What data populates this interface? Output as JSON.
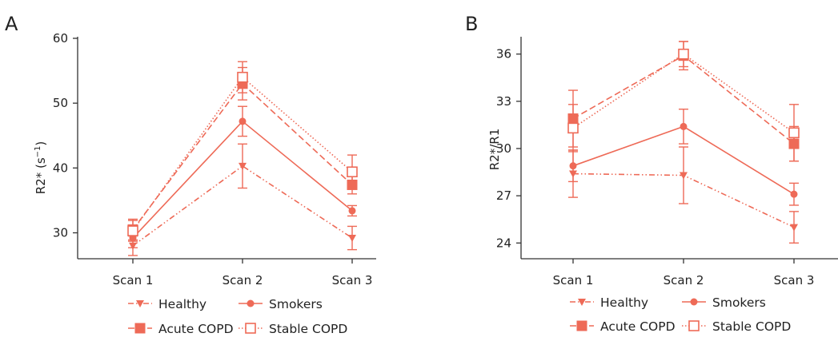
{
  "colors": {
    "series": "#ee6a57",
    "axis": "#333333",
    "text": "#222222"
  },
  "legend": {
    "placement": "bottom",
    "items": [
      {
        "label": "Healthy",
        "style": "dashdotdot",
        "marker": "triangle-down"
      },
      {
        "label": "Smokers",
        "style": "solid",
        "marker": "circle"
      },
      {
        "label": "Acute COPD",
        "style": "dashed",
        "marker": "square-filled"
      },
      {
        "label": "Stable COPD",
        "style": "dotted",
        "marker": "square-open"
      }
    ]
  },
  "chart_data": [
    {
      "panel": "A",
      "type": "line",
      "categories": [
        "Scan 1",
        "Scan 2",
        "Scan 3"
      ],
      "ylabel": "R2* (s",
      "ylabel_sup": "−1",
      "ylabel_tail": ")",
      "ylim": [
        26,
        60
      ],
      "yticks": [
        30,
        40,
        50,
        60
      ],
      "grid": false,
      "series": [
        {
          "name": "Healthy",
          "values": [
            28.0,
            40.3,
            29.2
          ],
          "err": [
            1.5,
            3.4,
            1.8
          ]
        },
        {
          "name": "Smokers",
          "values": [
            29.2,
            47.2,
            33.4
          ],
          "err": [
            1.5,
            2.3,
            0.8
          ]
        },
        {
          "name": "Acute COPD",
          "values": [
            30.5,
            53.0,
            37.4
          ],
          "err": [
            1.6,
            2.5,
            1.4
          ]
        },
        {
          "name": "Stable COPD",
          "values": [
            30.3,
            54.0,
            39.4
          ],
          "err": [
            1.6,
            2.4,
            2.6
          ]
        }
      ]
    },
    {
      "panel": "B",
      "type": "line",
      "categories": [
        "Scan 1",
        "Scan 2",
        "Scan 3"
      ],
      "ylabel": "R2*/R1",
      "ylim": [
        23,
        37
      ],
      "yticks": [
        24,
        27,
        30,
        33,
        36
      ],
      "grid": false,
      "series": [
        {
          "name": "Healthy",
          "values": [
            28.4,
            28.3,
            25.0
          ],
          "err": [
            1.5,
            1.8,
            1.0
          ]
        },
        {
          "name": "Smokers",
          "values": [
            28.9,
            31.4,
            27.1
          ],
          "err": [
            1.0,
            1.1,
            0.7
          ]
        },
        {
          "name": "Acute COPD",
          "values": [
            31.9,
            35.9,
            30.3
          ],
          "err": [
            1.8,
            0.9,
            1.1
          ]
        },
        {
          "name": "Stable COPD",
          "values": [
            31.3,
            36.0,
            31.0
          ],
          "err": [
            1.5,
            0.8,
            1.8
          ]
        }
      ]
    }
  ]
}
